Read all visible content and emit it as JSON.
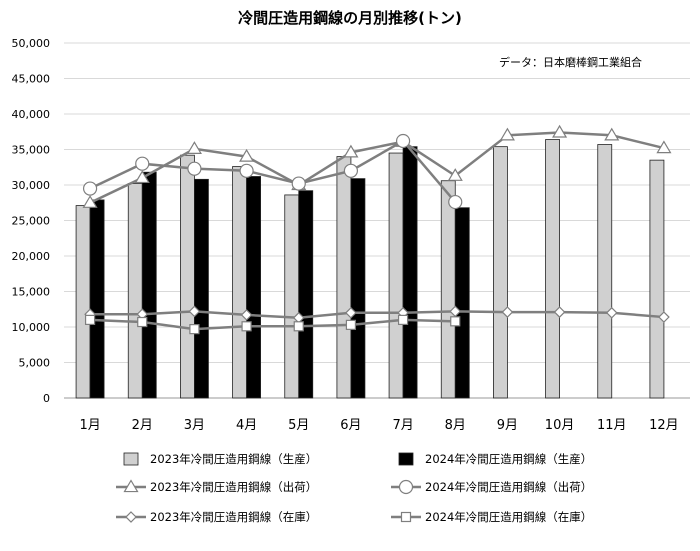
{
  "chart_data": {
    "type": "bar",
    "title": "冷間圧造用鋼線の月別推移(トン)",
    "source_note": "データ：日本磨棒鋼工業組合",
    "categories": [
      "1月",
      "2月",
      "3月",
      "4月",
      "5月",
      "6月",
      "7月",
      "8月",
      "9月",
      "10月",
      "11月",
      "12月"
    ],
    "y_ticks": [
      "0",
      "5,000",
      "10,000",
      "15,000",
      "20,000",
      "25,000",
      "30,000",
      "35,000",
      "40,000",
      "45,000",
      "50,000"
    ],
    "ylim": [
      0,
      50000
    ],
    "grid": true,
    "legend_position": "bottom",
    "bar_series": [
      {
        "name": "2023年冷間圧造用鋼線（生産）",
        "color": "#d0d0d0",
        "values": [
          27100,
          30200,
          34200,
          32600,
          28600,
          34000,
          34500,
          30600,
          35400,
          36400,
          35700,
          33500
        ]
      },
      {
        "name": "2024年冷間圧造用鋼線（生産）",
        "color": "#000000",
        "values": [
          27900,
          31800,
          30800,
          31200,
          29200,
          30900,
          35400,
          26800,
          null,
          null,
          null,
          null
        ]
      }
    ],
    "line_series": [
      {
        "name": "2023年冷間圧造用鋼線（出荷）",
        "marker": "triangle",
        "values": [
          27500,
          31000,
          35100,
          34000,
          30000,
          34600,
          36100,
          31300,
          37000,
          37400,
          37000,
          35200
        ]
      },
      {
        "name": "2024年冷間圧造用鋼線（出荷）",
        "marker": "circle",
        "values": [
          29500,
          33000,
          32300,
          32000,
          30200,
          32000,
          36200,
          27600,
          null,
          null,
          null,
          null
        ]
      },
      {
        "name": "2023年冷間圧造用鋼線（在庫）",
        "marker": "diamond",
        "values": [
          11800,
          11800,
          12200,
          11700,
          11300,
          12000,
          12000,
          12200,
          12100,
          12100,
          12000,
          11400
        ]
      },
      {
        "name": "2024年冷間圧造用鋼線（在庫）",
        "marker": "square",
        "values": [
          11000,
          10700,
          9700,
          10100,
          10100,
          10300,
          11000,
          10800,
          null,
          null,
          null,
          null
        ]
      }
    ]
  }
}
